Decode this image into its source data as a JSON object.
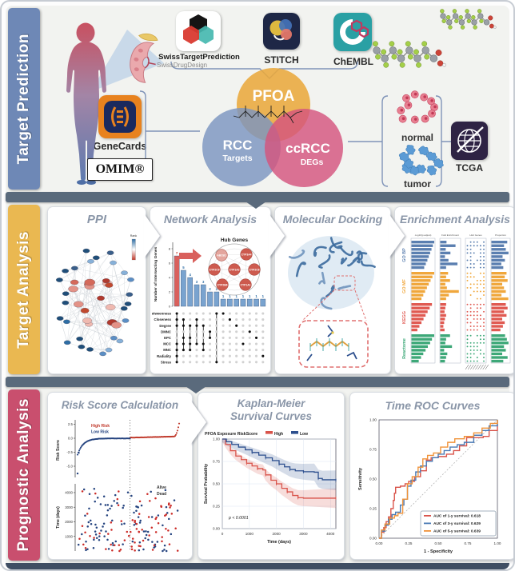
{
  "sections": [
    {
      "label": "Target Prediction",
      "color": "#6e88b6"
    },
    {
      "label": "Target Analysis",
      "color": "#eab851"
    },
    {
      "label": "Prognostic Analysis",
      "color": "#c94f6e"
    }
  ],
  "logos": {
    "swiss": {
      "name": "SwissTargetPrediction",
      "subtitle": "SwissDrugDesign"
    },
    "stitch": {
      "name": "STITCH"
    },
    "chembl": {
      "name": "ChEMBL"
    },
    "genecards": {
      "name": "GeneCards"
    },
    "omim": {
      "name": "OMIM®"
    },
    "tcga": {
      "name": "TCGA"
    }
  },
  "venn": {
    "top": "PFOA",
    "left_line1": "RCC",
    "left_line2": "Targets",
    "right_line1": "ccRCC",
    "right_line2": "DEGs",
    "colors": {
      "pfoa": "#e9a83c",
      "rcc": "#7b95bf",
      "ccrcc": "#d4547e"
    }
  },
  "samples": {
    "normal": "normal",
    "tumor": "tumor"
  },
  "panels": {
    "ppi": "PPI",
    "network": "Network Analysis",
    "docking": "Molecular Docking",
    "enrichment": "Enrichment Analysis",
    "risk": "Risk Score Calculation",
    "km_line1": "Kaplan-Meier",
    "km_line2": "Survival Curves",
    "roc": "Time ROC Curves"
  },
  "chart_data": {
    "ppi": {
      "type": "scatter",
      "colorbar_label": "Rank"
    },
    "upset": {
      "type": "bar",
      "ylabel": "Number of Intersecting Genes",
      "ylim": [
        0,
        8
      ],
      "yticks": [
        0,
        2,
        4,
        6,
        8
      ],
      "values": [
        7,
        5,
        4,
        3,
        3,
        2,
        2,
        1,
        1,
        1,
        1,
        1,
        1,
        1
      ],
      "highlight_color": "#d9605c",
      "bar_color": "#79a3cf",
      "methods": [
        "Betweenness",
        "Closeness",
        "Degree",
        "DMNC",
        "EPC",
        "MCC",
        "MNC",
        "Radiality",
        "Stress"
      ],
      "memberships": [
        [
          0,
          1,
          2,
          5,
          6,
          7,
          8
        ],
        [
          1,
          2,
          4,
          5,
          6
        ],
        [
          2,
          4,
          5,
          6
        ],
        [
          1,
          2,
          5
        ],
        [
          2,
          5,
          6
        ],
        [
          3,
          4
        ],
        [
          0,
          8
        ],
        [
          0
        ],
        [
          1
        ],
        [
          2
        ],
        [
          5
        ],
        [
          3
        ],
        [
          4
        ],
        [
          7
        ]
      ]
    },
    "hub": {
      "title": "Hub Genes",
      "genes": [
        "ABCB1",
        "CYP3A4",
        "CYP2C9",
        "CYP1A2",
        "CYP2C8",
        "CYP2B6",
        "CYP1A1"
      ]
    },
    "enrichment": {
      "type": "bar",
      "panel_headers": [
        "-log10(p.adjust)",
        "Fold Enrichment",
        "Hub Genes",
        "Proportion"
      ],
      "groups": [
        {
          "name": "GO BP",
          "color": "#5b7fb0",
          "logp": [
            1,
            0.94,
            0.88,
            0.82,
            0.76,
            0.7,
            0.63,
            0.56
          ],
          "fold": [
            0.32,
            0.78,
            0.28,
            0.52,
            0.24,
            0.42,
            0.88,
            0.3
          ],
          "prop": [
            0.88,
            0.7,
            0.8,
            0.95,
            0.62,
            0.75,
            0.55,
            0.66
          ]
        },
        {
          "name": "GO MF",
          "color": "#f0a73c",
          "logp": [
            1,
            0.92,
            0.84,
            0.76,
            0.68,
            0.6,
            0.52,
            0.44
          ],
          "fold": [
            0.4,
            0.3,
            0.5,
            0.26,
            0.34,
            0.95,
            0.44,
            0.3
          ],
          "prop": [
            0.84,
            0.74,
            0.9,
            0.6,
            0.7,
            0.8,
            0.56,
            0.94
          ]
        },
        {
          "name": "KEGG",
          "color": "#e05a52",
          "logp": [
            0.9,
            0.8,
            0.71,
            0.62,
            0.53,
            0.44,
            0.35,
            0.26
          ],
          "fold": [
            0.3,
            0.26,
            0.22,
            0.3,
            0.24,
            0.2,
            0.16,
            0.22
          ],
          "prop": [
            0.8,
            0.9,
            0.7,
            0.84,
            0.6,
            0.74,
            0.64,
            0.5
          ]
        },
        {
          "name": "Reactome",
          "color": "#3da878",
          "logp": [
            1,
            0.9,
            0.82,
            0.72,
            0.62,
            0.52,
            0.42,
            0.32
          ],
          "fold": [
            0.5,
            0.3,
            0.26,
            0.6,
            0.2,
            0.36,
            0.3,
            0.24
          ],
          "prop": [
            0.76,
            0.86,
            0.95,
            0.7,
            0.8,
            0.6,
            0.9,
            0.66
          ]
        }
      ]
    },
    "risk_score": {
      "type": "scatter",
      "top": {
        "ylabel": "Risk Score",
        "yticks": [
          2.5,
          0.0,
          -2.5,
          -5.0
        ],
        "legend": [
          {
            "label": "High Risk",
            "color": "#c0392b"
          },
          {
            "label": "Low Risk",
            "color": "#24437f"
          }
        ]
      },
      "bottom": {
        "ylabel": "Time (days)",
        "yticks": [
          1000,
          2000,
          3000,
          4000
        ],
        "legend": [
          {
            "label": "Alive",
            "color": "#333333"
          },
          {
            "label": "Dead",
            "color": "#333333"
          }
        ]
      }
    },
    "km": {
      "type": "line",
      "legend_title": "PFOA Exposure RiskScore",
      "xlabel": "Time (days)",
      "ylabel": "Survival Probability",
      "xticks": [
        0,
        1000,
        2000,
        3000,
        4000
      ],
      "yticks": [
        1.0,
        0.75,
        0.5,
        0.25,
        0.0
      ],
      "xlim": [
        0,
        4200
      ],
      "ylim": [
        0,
        1
      ],
      "annotation": "p < 0.0001",
      "series": [
        {
          "name": "High",
          "color": "#d9534a",
          "points": [
            [
              0,
              1.0
            ],
            [
              120,
              0.94
            ],
            [
              300,
              0.87
            ],
            [
              500,
              0.81
            ],
            [
              700,
              0.77
            ],
            [
              900,
              0.73
            ],
            [
              1100,
              0.7
            ],
            [
              1300,
              0.67
            ],
            [
              1500,
              0.655
            ],
            [
              1600,
              0.6
            ],
            [
              1800,
              0.54
            ],
            [
              2000,
              0.5
            ],
            [
              2200,
              0.45
            ],
            [
              2400,
              0.41
            ],
            [
              2600,
              0.37
            ],
            [
              2800,
              0.345
            ],
            [
              3000,
              0.34
            ],
            [
              4200,
              0.34
            ]
          ]
        },
        {
          "name": "Low",
          "color": "#2d4f8e",
          "points": [
            [
              0,
              1.0
            ],
            [
              150,
              0.97
            ],
            [
              350,
              0.94
            ],
            [
              600,
              0.91
            ],
            [
              850,
              0.88
            ],
            [
              1100,
              0.85
            ],
            [
              1350,
              0.82
            ],
            [
              1600,
              0.79
            ],
            [
              1850,
              0.76
            ],
            [
              2100,
              0.72
            ],
            [
              2300,
              0.69
            ],
            [
              2500,
              0.66
            ],
            [
              2700,
              0.645
            ],
            [
              3000,
              0.635
            ],
            [
              3400,
              0.63
            ],
            [
              3550,
              0.56
            ],
            [
              3700,
              0.545
            ],
            [
              4200,
              0.54
            ]
          ]
        }
      ]
    },
    "roc": {
      "type": "line",
      "xlabel": "1 - Specificity",
      "ylabel": "Sensitivity",
      "xticks": [
        0.0,
        0.25,
        0.5,
        0.75,
        1.0
      ],
      "yticks": [
        0.0,
        0.25,
        0.5,
        0.75,
        1.0
      ],
      "series": [
        {
          "name": "AUC of 1-y survival: 0.618",
          "color": "#d9534a",
          "points": [
            [
              0,
              0
            ],
            [
              0.02,
              0.05
            ],
            [
              0.04,
              0.09
            ],
            [
              0.06,
              0.14
            ],
            [
              0.08,
              0.18
            ],
            [
              0.1,
              0.25
            ],
            [
              0.12,
              0.32
            ],
            [
              0.13,
              0.38
            ],
            [
              0.14,
              0.43
            ],
            [
              0.18,
              0.44
            ],
            [
              0.22,
              0.46
            ],
            [
              0.25,
              0.48
            ],
            [
              0.3,
              0.52
            ],
            [
              0.35,
              0.57
            ],
            [
              0.4,
              0.66
            ],
            [
              0.44,
              0.68
            ],
            [
              0.5,
              0.69
            ],
            [
              0.57,
              0.71
            ],
            [
              0.63,
              0.74
            ],
            [
              0.68,
              0.78
            ],
            [
              0.74,
              0.85
            ],
            [
              0.88,
              0.86
            ],
            [
              0.93,
              0.91
            ],
            [
              1,
              1
            ]
          ]
        },
        {
          "name": "AUC of 3-y survival: 0.629",
          "color": "#4a7ab5",
          "points": [
            [
              0,
              0
            ],
            [
              0.02,
              0.06
            ],
            [
              0.05,
              0.11
            ],
            [
              0.08,
              0.16
            ],
            [
              0.11,
              0.2
            ],
            [
              0.14,
              0.22
            ],
            [
              0.18,
              0.28
            ],
            [
              0.21,
              0.33
            ],
            [
              0.24,
              0.44
            ],
            [
              0.27,
              0.49
            ],
            [
              0.31,
              0.56
            ],
            [
              0.35,
              0.61
            ],
            [
              0.4,
              0.65
            ],
            [
              0.45,
              0.68
            ],
            [
              0.5,
              0.71
            ],
            [
              0.55,
              0.74
            ],
            [
              0.6,
              0.77
            ],
            [
              0.66,
              0.79
            ],
            [
              0.72,
              0.81
            ],
            [
              0.8,
              0.87
            ],
            [
              0.87,
              0.91
            ],
            [
              0.93,
              0.95
            ],
            [
              1,
              1
            ]
          ]
        },
        {
          "name": "AUC of 5-y survival: 0.639",
          "color": "#f0933a",
          "points": [
            [
              0,
              0
            ],
            [
              0.02,
              0.07
            ],
            [
              0.05,
              0.12
            ],
            [
              0.09,
              0.17
            ],
            [
              0.13,
              0.19
            ],
            [
              0.16,
              0.21
            ],
            [
              0.2,
              0.33
            ],
            [
              0.24,
              0.46
            ],
            [
              0.28,
              0.52
            ],
            [
              0.33,
              0.6
            ],
            [
              0.37,
              0.67
            ],
            [
              0.41,
              0.7
            ],
            [
              0.46,
              0.72
            ],
            [
              0.52,
              0.77
            ],
            [
              0.58,
              0.81
            ],
            [
              0.64,
              0.84
            ],
            [
              0.72,
              0.86
            ],
            [
              0.8,
              0.89
            ],
            [
              0.87,
              0.93
            ],
            [
              0.94,
              0.97
            ],
            [
              1,
              1
            ]
          ]
        }
      ]
    }
  }
}
